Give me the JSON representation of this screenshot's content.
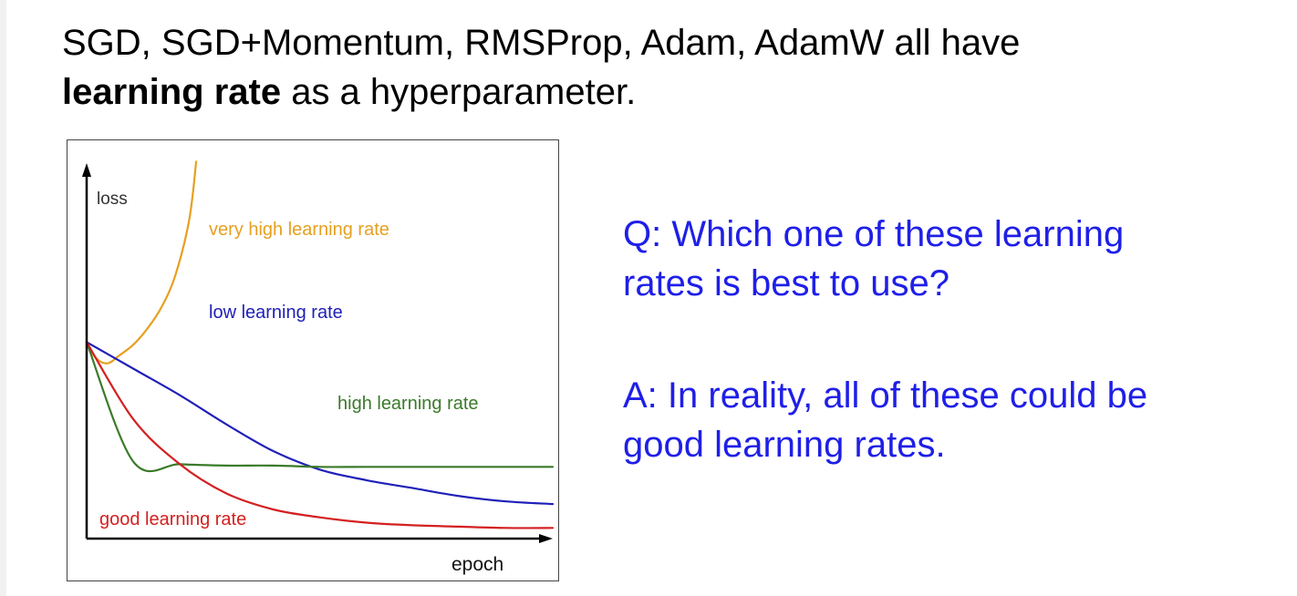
{
  "heading": {
    "line1": "SGD, SGD+Momentum, RMSProp, Adam, AdamW all have",
    "line2_bold": "learning rate",
    "line2_rest": " as a hyperparameter."
  },
  "question": {
    "line1": "Q: Which one of these learning",
    "line2": "rates is best to use?"
  },
  "answer": {
    "line1": "A: In reality, all of these could be",
    "line2": "good learning rates."
  },
  "chart_data": {
    "type": "line",
    "xlabel": "epoch",
    "ylabel": "loss",
    "grid": false,
    "legend": "none (curves labeled inline)",
    "axis_ticks": "none",
    "x": [
      0,
      0.1,
      0.2,
      0.3,
      0.4,
      0.5,
      0.6,
      0.7,
      0.8,
      0.9,
      1.0
    ],
    "series": [
      {
        "name": "very high learning rate",
        "color": "#e6a020",
        "x": [
          0,
          0.02,
          0.045,
          0.07,
          0.1,
          0.13,
          0.16,
          0.19,
          0.22,
          0.235
        ],
        "values": [
          0.74,
          0.68,
          0.66,
          0.69,
          0.73,
          0.79,
          0.87,
          0.99,
          1.2,
          1.42
        ]
      },
      {
        "name": "low learning rate",
        "color": "#2020b8",
        "values": [
          0.74,
          0.64,
          0.54,
          0.43,
          0.33,
          0.26,
          0.22,
          0.19,
          0.16,
          0.14,
          0.13
        ]
      },
      {
        "name": "high learning rate",
        "color": "#3a7a2a",
        "values": [
          0.74,
          0.29,
          0.28,
          0.275,
          0.275,
          0.27,
          0.27,
          0.27,
          0.27,
          0.27,
          0.27
        ]
      },
      {
        "name": "good learning rate",
        "color": "#d42020",
        "values": [
          0.74,
          0.45,
          0.28,
          0.17,
          0.11,
          0.08,
          0.06,
          0.05,
          0.045,
          0.04,
          0.04
        ]
      }
    ],
    "xlim": [
      0,
      1
    ],
    "ylim": [
      0,
      1.5
    ]
  }
}
